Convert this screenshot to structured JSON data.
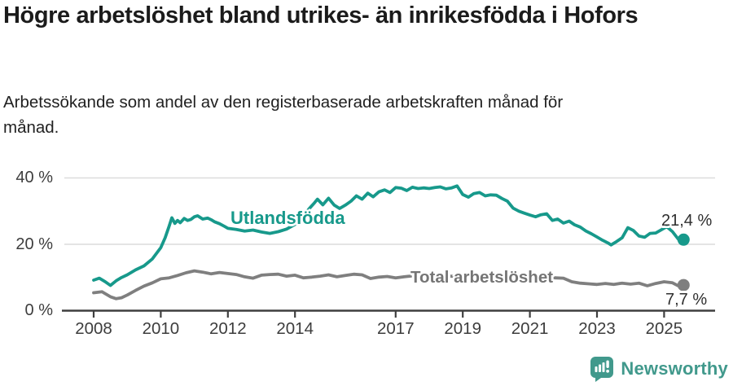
{
  "header": {
    "title": "Högre arbetslöshet bland utrikes- än inrikesfödda i Hofors",
    "subtitle": "Arbetssökande som andel av den registerbaserade arbetskraften månad för månad."
  },
  "chart_data": {
    "type": "line",
    "grid": "horizontal",
    "legend": "inline-labels",
    "x_axis": {
      "ticks": [
        2008,
        2010,
        2012,
        2014,
        2017,
        2019,
        2021,
        2023,
        2025
      ],
      "range": [
        2007.1,
        2026.5
      ],
      "unit": "year"
    },
    "y_axis": {
      "ticks": [
        {
          "value": 0,
          "label": "0 %"
        },
        {
          "value": 20,
          "label": "20 %"
        },
        {
          "value": 40,
          "label": "40 %"
        }
      ],
      "range": [
        0,
        44
      ],
      "unit": "%"
    },
    "series": [
      {
        "name": "Utlandsfödda",
        "color": "#17998b",
        "end_label": "21,4 %",
        "end_value": 21.4,
        "x": [
          2008.0,
          2008.17,
          2008.33,
          2008.5,
          2008.67,
          2008.83,
          2009.0,
          2009.25,
          2009.5,
          2009.75,
          2010.0,
          2010.13,
          2010.25,
          2010.33,
          2010.42,
          2010.5,
          2010.58,
          2010.7,
          2010.8,
          2010.9,
          2011.0,
          2011.1,
          2011.25,
          2011.4,
          2011.5,
          2011.6,
          2011.75,
          2011.9,
          2012.0,
          2012.25,
          2012.5,
          2012.75,
          2013.0,
          2013.25,
          2013.5,
          2013.75,
          2014.0,
          2014.25,
          2014.42,
          2014.58,
          2014.67,
          2014.83,
          2015.0,
          2015.17,
          2015.33,
          2015.5,
          2015.67,
          2015.83,
          2016.0,
          2016.17,
          2016.33,
          2016.5,
          2016.67,
          2016.83,
          2017.0,
          2017.17,
          2017.33,
          2017.5,
          2017.67,
          2017.83,
          2018.0,
          2018.17,
          2018.33,
          2018.5,
          2018.67,
          2018.83,
          2019.0,
          2019.17,
          2019.33,
          2019.5,
          2019.67,
          2019.83,
          2020.0,
          2020.17,
          2020.33,
          2020.5,
          2020.67,
          2020.83,
          2021.0,
          2021.17,
          2021.33,
          2021.5,
          2021.67,
          2021.83,
          2022.0,
          2022.17,
          2022.33,
          2022.5,
          2022.67,
          2022.83,
          2023.0,
          2023.17,
          2023.33,
          2023.42,
          2023.58,
          2023.75,
          2023.92,
          2024.08,
          2024.25,
          2024.42,
          2024.58,
          2024.75,
          2024.92,
          2025.08,
          2025.25,
          2025.42,
          2025.5,
          2025.58
        ],
        "values": [
          9.2,
          9.8,
          8.8,
          7.6,
          9.0,
          10.0,
          10.8,
          12.3,
          13.5,
          15.6,
          19.0,
          22.0,
          25.5,
          28.0,
          26.3,
          27.2,
          26.5,
          27.8,
          27.2,
          27.5,
          28.3,
          28.6,
          27.6,
          27.9,
          27.4,
          26.8,
          26.2,
          25.4,
          24.8,
          24.5,
          24.0,
          24.3,
          23.7,
          23.3,
          23.8,
          24.6,
          26.0,
          28.5,
          30.7,
          32.5,
          33.6,
          31.9,
          33.9,
          31.8,
          30.8,
          31.8,
          33.0,
          34.6,
          33.6,
          35.4,
          34.3,
          35.8,
          36.4,
          35.6,
          37.1,
          36.9,
          36.2,
          37.2,
          36.8,
          37.0,
          36.8,
          37.1,
          37.3,
          36.7,
          37.0,
          37.6,
          35.0,
          34.2,
          35.3,
          35.6,
          34.6,
          34.9,
          34.8,
          33.8,
          33.0,
          30.9,
          30.0,
          29.4,
          28.8,
          28.3,
          28.9,
          29.2,
          27.2,
          27.6,
          26.4,
          27.0,
          25.9,
          25.2,
          24.0,
          23.2,
          22.2,
          21.2,
          20.4,
          19.8,
          20.8,
          22.0,
          25.0,
          24.2,
          22.5,
          22.1,
          23.3,
          23.4,
          24.4,
          25.3,
          23.8,
          21.6,
          20.6,
          21.4
        ]
      },
      {
        "name": "Total arbetslöshet",
        "color": "#7f7f7f",
        "end_label": "7,7 %",
        "end_value": 7.7,
        "x": [
          2008.0,
          2008.25,
          2008.5,
          2008.67,
          2008.83,
          2009.0,
          2009.25,
          2009.5,
          2009.75,
          2010.0,
          2010.25,
          2010.5,
          2010.75,
          2011.0,
          2011.25,
          2011.5,
          2011.75,
          2012.0,
          2012.25,
          2012.5,
          2012.75,
          2013.0,
          2013.25,
          2013.5,
          2013.75,
          2014.0,
          2014.25,
          2014.5,
          2014.75,
          2015.0,
          2015.25,
          2015.5,
          2015.75,
          2016.0,
          2016.25,
          2016.5,
          2016.75,
          2017.0,
          2017.25,
          2017.5,
          2017.75,
          2018.0,
          2018.25,
          2018.5,
          2018.75,
          2019.0,
          2019.25,
          2019.5,
          2019.75,
          2020.0,
          2020.25,
          2020.5,
          2020.75,
          2021.0,
          2021.25,
          2021.5,
          2021.75,
          2022.0,
          2022.25,
          2022.5,
          2022.75,
          2023.0,
          2023.25,
          2023.5,
          2023.75,
          2024.0,
          2024.25,
          2024.5,
          2024.75,
          2025.0,
          2025.25,
          2025.42,
          2025.58
        ],
        "values": [
          5.4,
          5.7,
          4.2,
          3.6,
          3.9,
          4.7,
          6.1,
          7.4,
          8.4,
          9.6,
          9.9,
          10.6,
          11.4,
          12.0,
          11.6,
          11.1,
          11.5,
          11.2,
          10.9,
          10.2,
          9.8,
          10.7,
          10.9,
          11.0,
          10.4,
          10.7,
          9.9,
          10.1,
          10.4,
          10.8,
          10.2,
          10.6,
          11.0,
          10.8,
          9.7,
          10.1,
          10.3,
          9.9,
          10.2,
          10.5,
          10.8,
          11.0,
          10.8,
          10.5,
          10.3,
          10.2,
          10.0,
          10.1,
          10.3,
          10.5,
          11.0,
          11.2,
          10.8,
          10.5,
          10.2,
          10.0,
          9.9,
          9.8,
          8.7,
          8.3,
          8.1,
          7.9,
          8.2,
          7.9,
          8.3,
          8.0,
          8.3,
          7.5,
          8.2,
          8.7,
          8.4,
          7.5,
          7.7
        ]
      }
    ],
    "style": {
      "grid_color": "#dcdcdc",
      "axis_color": "#3f3f3f",
      "annotation_color": "#2f2f2f"
    }
  },
  "footer": {
    "brand": "Newsworthy",
    "brand_color": "#41998c",
    "icon": "newsworthy-speech-bubble-bar-chart-icon"
  }
}
